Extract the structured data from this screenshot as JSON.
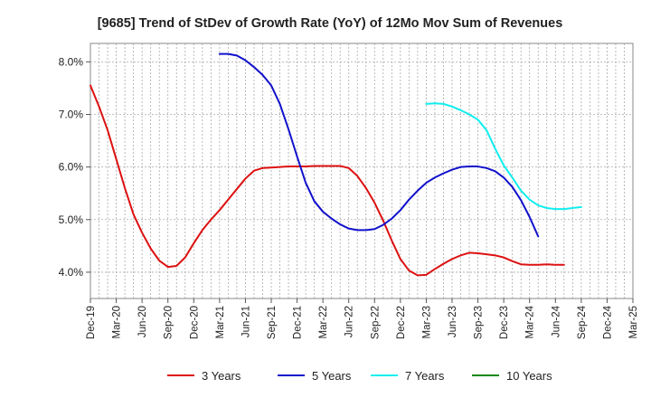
{
  "chart_data": {
    "type": "line",
    "title": "[9685]  Trend of StDev of Growth Rate (YoY) of 12Mo Mov Sum of Revenues",
    "xlabel": "",
    "ylabel": "",
    "x_ticks": [
      "Dec-19",
      "Mar-20",
      "Jun-20",
      "Sep-20",
      "Dec-20",
      "Mar-21",
      "Jun-21",
      "Sep-21",
      "Dec-21",
      "Mar-22",
      "Jun-22",
      "Sep-22",
      "Dec-22",
      "Mar-23",
      "Jun-23",
      "Sep-23",
      "Dec-23",
      "Mar-24",
      "Jun-24",
      "Sep-24",
      "Dec-24",
      "Mar-25"
    ],
    "y_ticks": [
      "4.0%",
      "5.0%",
      "6.0%",
      "7.0%",
      "8.0%"
    ],
    "y_tick_values": [
      4.0,
      5.0,
      6.0,
      7.0,
      8.0
    ],
    "ylim": [
      3.5,
      8.35
    ],
    "grid": true,
    "legend_position": "bottom",
    "series": [
      {
        "name": "3 Years",
        "color": "#dd1111",
        "start_index": 0,
        "values": [
          7.55,
          7.15,
          6.7,
          6.15,
          5.6,
          5.1,
          4.75,
          4.45,
          4.22,
          4.1,
          4.12,
          4.28,
          4.55,
          4.8,
          5.0,
          5.18,
          5.38,
          5.58,
          5.78,
          5.93,
          5.98,
          5.99,
          6.0,
          6.01,
          6.01,
          6.01,
          6.02,
          6.02,
          6.02,
          6.02,
          5.98,
          5.83,
          5.6,
          5.32,
          4.98,
          4.6,
          4.25,
          4.03,
          3.94,
          3.95,
          4.06,
          4.16,
          4.25,
          4.32,
          4.37,
          4.36,
          4.34,
          4.32,
          4.28,
          4.21,
          4.15,
          4.14,
          4.14,
          4.15,
          4.14,
          4.14
        ]
      },
      {
        "name": "5 Years",
        "color": "#1111cc",
        "start_index": 15,
        "values": [
          8.15,
          8.15,
          8.12,
          8.03,
          7.9,
          7.75,
          7.55,
          7.2,
          6.72,
          6.2,
          5.7,
          5.35,
          5.15,
          5.02,
          4.91,
          4.83,
          4.8,
          4.8,
          4.82,
          4.9,
          5.02,
          5.18,
          5.38,
          5.55,
          5.7,
          5.8,
          5.88,
          5.95,
          6.0,
          6.01,
          6.01,
          5.98,
          5.92,
          5.8,
          5.62,
          5.37,
          5.05,
          4.68
        ]
      },
      {
        "name": "7 Years",
        "color": "#11eeee",
        "start_index": 39,
        "values": [
          7.2,
          7.21,
          7.2,
          7.15,
          7.08,
          7.0,
          6.9,
          6.7,
          6.35,
          6.03,
          5.8,
          5.55,
          5.38,
          5.27,
          5.22,
          5.2,
          5.2,
          5.22,
          5.24
        ]
      },
      {
        "name": "10 Years",
        "color": "#118811",
        "start_index": 0,
        "values": []
      }
    ]
  }
}
